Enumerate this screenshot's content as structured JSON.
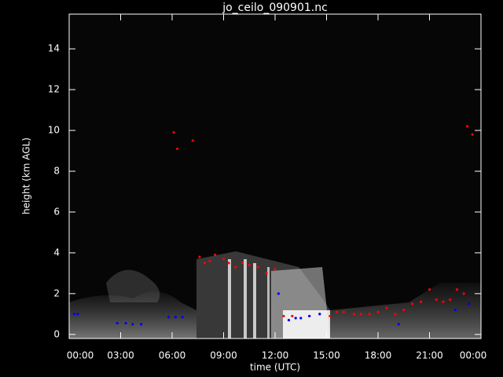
{
  "chart_data": {
    "type": "scatter",
    "title": "jo_ceilo_090901.nc",
    "xlabel": "time (UTC)",
    "ylabel": "height (km AGL)",
    "xlim": [
      0,
      24
    ],
    "ylim": [
      -0.2,
      15.7
    ],
    "xticks": [
      {
        "value": 0,
        "label": "00:00"
      },
      {
        "value": 3,
        "label": "03:00"
      },
      {
        "value": 6,
        "label": "06:00"
      },
      {
        "value": 9,
        "label": "09:00"
      },
      {
        "value": 12,
        "label": "12:00"
      },
      {
        "value": 15,
        "label": "15:00"
      },
      {
        "value": 18,
        "label": "18:00"
      },
      {
        "value": 21,
        "label": "21:00"
      },
      {
        "value": 24,
        "label": "00:00"
      }
    ],
    "yticks": [
      0,
      2,
      4,
      6,
      8,
      10,
      12,
      14
    ],
    "grid": false,
    "series": [
      {
        "color": "#ff0000",
        "x": [
          6.1,
          6.3,
          7.2,
          7.6,
          7.9,
          8.2,
          8.5,
          9.0,
          9.3,
          9.7,
          10.1,
          10.5,
          11.0,
          11.5,
          12.0,
          12.5,
          13.0,
          14.0,
          14.6,
          15.2,
          15.6,
          16.0,
          16.6,
          17.0,
          17.5,
          18.0,
          18.5,
          19.0,
          19.5,
          20.0,
          20.5,
          21.0,
          21.4,
          21.8,
          22.2,
          22.6,
          23.0,
          23.2,
          23.5
        ],
        "values": [
          9.9,
          9.1,
          9.5,
          3.8,
          3.5,
          3.6,
          3.9,
          3.7,
          3.5,
          3.3,
          3.5,
          3.4,
          3.3,
          3.0,
          3.2,
          0.9,
          0.9,
          0.9,
          1.0,
          0.9,
          1.1,
          1.1,
          1.0,
          1.0,
          1.0,
          1.1,
          1.3,
          1.0,
          1.2,
          1.5,
          1.6,
          2.2,
          1.7,
          1.6,
          1.7,
          2.2,
          2.0,
          10.2,
          9.8
        ]
      },
      {
        "color": "#0000ff",
        "x": [
          0.3,
          0.5,
          2.8,
          3.3,
          3.7,
          4.2,
          5.8,
          6.2,
          6.6,
          12.2,
          12.8,
          13.2,
          13.5,
          14.0,
          14.6,
          19.2,
          22.5,
          23.3
        ],
        "values": [
          1.0,
          1.0,
          0.55,
          0.55,
          0.5,
          0.5,
          0.85,
          0.85,
          0.85,
          2.0,
          0.7,
          0.8,
          0.8,
          0.9,
          1.0,
          0.5,
          1.2,
          1.5
        ]
      }
    ]
  }
}
